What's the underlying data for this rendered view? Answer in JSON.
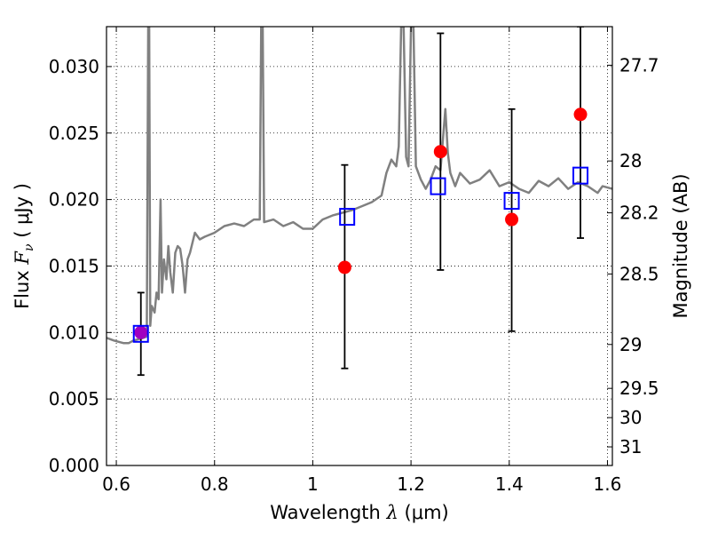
{
  "chart_data": {
    "type": "scatter",
    "xlabel_prefix": "Wavelength",
    "xlabel_symbol": "λ",
    "xlabel_unit": "(μm)",
    "ylabel_prefix": "Flux",
    "ylabel_symbol": "F",
    "ylabel_subscript": "ν",
    "ylabel_unit": "( μJy )",
    "y2label": "Magnitude (AB)",
    "xlim": [
      0.58,
      1.61
    ],
    "ylim": [
      0.0,
      0.033
    ],
    "grid": true,
    "x_ticks": [
      0.6,
      0.8,
      1.0,
      1.2,
      1.4,
      1.6
    ],
    "x_tick_labels": [
      "0.6",
      "0.8",
      "1",
      "1.2",
      "1.4",
      "1.6"
    ],
    "y_ticks": [
      0.0,
      0.005,
      0.01,
      0.015,
      0.02,
      0.025,
      0.03
    ],
    "y_tick_labels": [
      "0.000",
      "0.005",
      "0.010",
      "0.015",
      "0.020",
      "0.025",
      "0.030"
    ],
    "y2_ticks": [
      {
        "label": "27.7",
        "flux": 0.0301
      },
      {
        "label": "28",
        "flux": 0.0229
      },
      {
        "label": "28.2",
        "flux": 0.019
      },
      {
        "label": "28.5",
        "flux": 0.0144
      },
      {
        "label": "29",
        "flux": 0.0091
      },
      {
        "label": "29.5",
        "flux": 0.0058
      },
      {
        "label": "30",
        "flux": 0.0036
      },
      {
        "label": "31",
        "flux": 0.0014
      }
    ],
    "observed": {
      "color": "#ff0000",
      "x": [
        0.65,
        1.065,
        1.26,
        1.405,
        1.545
      ],
      "y": [
        0.01,
        0.0149,
        0.0236,
        0.0185,
        0.0264
      ],
      "yerr_low": [
        0.0068,
        0.0073,
        0.0147,
        0.0101,
        0.0171
      ],
      "yerr_high": [
        0.013,
        0.0226,
        0.0325,
        0.0268,
        0.033
      ]
    },
    "model_photometry": {
      "color": "#0000ff",
      "x": [
        0.65,
        1.07,
        1.255,
        1.405,
        1.545
      ],
      "y": [
        0.0099,
        0.0187,
        0.021,
        0.0199,
        0.0218
      ]
    },
    "overlap_marker_color": "#a000c0",
    "sed_model": {
      "color": "#808080",
      "x": [
        0.58,
        0.595,
        0.605,
        0.615,
        0.625,
        0.635,
        0.645,
        0.655,
        0.662,
        0.665,
        0.667,
        0.669,
        0.672,
        0.678,
        0.682,
        0.686,
        0.69,
        0.693,
        0.697,
        0.702,
        0.706,
        0.71,
        0.715,
        0.72,
        0.725,
        0.73,
        0.735,
        0.74,
        0.745,
        0.75,
        0.76,
        0.77,
        0.78,
        0.8,
        0.82,
        0.84,
        0.86,
        0.88,
        0.892,
        0.895,
        0.898,
        0.901,
        0.92,
        0.94,
        0.96,
        0.98,
        1.0,
        1.02,
        1.04,
        1.06,
        1.08,
        1.1,
        1.12,
        1.14,
        1.15,
        1.16,
        1.17,
        1.175,
        1.18,
        1.185,
        1.19,
        1.195,
        1.2,
        1.205,
        1.21,
        1.22,
        1.23,
        1.24,
        1.25,
        1.26,
        1.27,
        1.275,
        1.28,
        1.29,
        1.3,
        1.32,
        1.34,
        1.36,
        1.38,
        1.4,
        1.42,
        1.44,
        1.46,
        1.48,
        1.5,
        1.52,
        1.54,
        1.56,
        1.58,
        1.59,
        1.6,
        1.61
      ],
      "y": [
        0.0096,
        0.0094,
        0.0093,
        0.0092,
        0.0092,
        0.0094,
        0.0095,
        0.0096,
        0.0097,
        0.033,
        0.033,
        0.0105,
        0.012,
        0.0115,
        0.013,
        0.0125,
        0.02,
        0.013,
        0.0155,
        0.014,
        0.0165,
        0.0145,
        0.013,
        0.016,
        0.0165,
        0.0163,
        0.015,
        0.013,
        0.0155,
        0.016,
        0.0175,
        0.017,
        0.0172,
        0.0175,
        0.018,
        0.0182,
        0.018,
        0.0185,
        0.0185,
        0.033,
        0.033,
        0.0183,
        0.0185,
        0.018,
        0.0183,
        0.0178,
        0.0178,
        0.0185,
        0.0188,
        0.019,
        0.0192,
        0.0195,
        0.0198,
        0.0203,
        0.022,
        0.023,
        0.0225,
        0.024,
        0.033,
        0.033,
        0.0232,
        0.0225,
        0.033,
        0.033,
        0.0225,
        0.0215,
        0.0208,
        0.0215,
        0.0225,
        0.0222,
        0.0268,
        0.0235,
        0.022,
        0.021,
        0.022,
        0.0212,
        0.0215,
        0.0222,
        0.021,
        0.0213,
        0.0208,
        0.0205,
        0.0214,
        0.021,
        0.0216,
        0.0208,
        0.0213,
        0.021,
        0.0205,
        0.021,
        0.0209,
        0.0208
      ]
    }
  }
}
